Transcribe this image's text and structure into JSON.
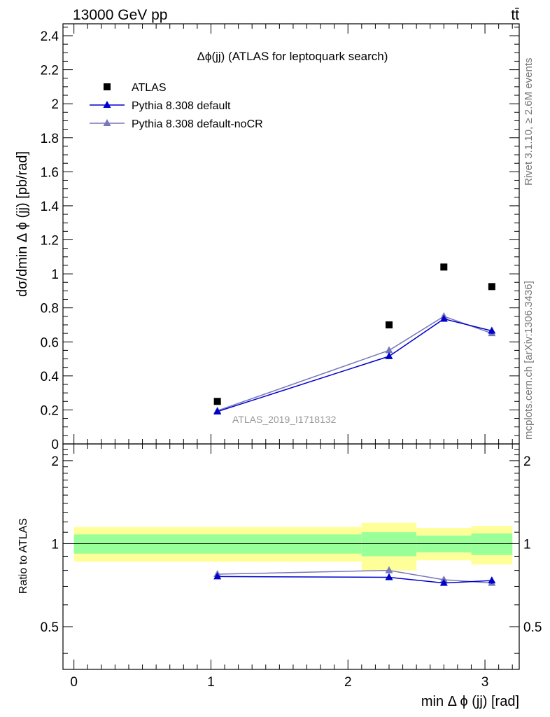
{
  "header": {
    "left": "13000 GeV pp",
    "right": "tt̄"
  },
  "side_labels": {
    "rivet": "Rivet 3.1.10, ≥ 2.6M events",
    "mcplots": "mcplots.cern.ch [arXiv:1306.3436]"
  },
  "chart_data": [
    {
      "type": "scatter",
      "title": "Δϕ(jj) (ATLAS for leptoquark search)",
      "ylabel": "dσ/dmin Δ ϕ (jj) [pb/rad]",
      "xlim": [
        -0.08,
        3.25
      ],
      "ylim": [
        0,
        2.47
      ],
      "yticks": [
        0,
        0.2,
        0.4,
        0.6,
        0.8,
        1,
        1.2,
        1.4,
        1.6,
        1.8,
        2,
        2.2,
        2.4
      ],
      "ytick_labels": [
        "0",
        "0.2",
        "0.4",
        "0.6",
        "0.8",
        "1",
        "1.2",
        "1.4",
        "1.6",
        "1.8",
        "2",
        "2.2",
        "2.4"
      ],
      "watermark": "ATLAS_2019_I1718132",
      "legend_position": "top-left",
      "series": [
        {
          "name": "ATLAS",
          "marker": "square",
          "color": "#000000",
          "x": [
            1.047,
            2.3,
            2.7,
            3.05
          ],
          "y": [
            0.25,
            0.7,
            1.04,
            0.925
          ]
        },
        {
          "name": "Pythia 8.308 default",
          "marker": "triangle",
          "color": "#0000cc",
          "x": [
            1.047,
            2.3,
            2.7,
            3.05
          ],
          "y": [
            0.19,
            0.515,
            0.735,
            0.665
          ],
          "yerr": [
            0.004,
            0.01,
            0.012,
            0.018
          ]
        },
        {
          "name": "Pythia 8.308 default-noCR",
          "marker": "triangle",
          "color": "#7777bb",
          "x": [
            1.047,
            2.3,
            2.7,
            3.05
          ],
          "y": [
            0.195,
            0.55,
            0.75,
            0.65
          ],
          "yerr": [
            0.004,
            0.01,
            0.012,
            0.012
          ]
        }
      ]
    },
    {
      "type": "scatter",
      "ylabel": "Ratio to ATLAS",
      "xlabel": "min Δ ϕ (jj) [rad]",
      "xlim": [
        -0.08,
        3.25
      ],
      "ylim": [
        0.35,
        2.3
      ],
      "yticks": [
        0.5,
        1,
        2
      ],
      "ytick_labels": [
        "0.5",
        "1",
        "2"
      ],
      "xticks": [
        0,
        1,
        2,
        3
      ],
      "xtick_labels": [
        "0",
        "1",
        "2",
        "3"
      ],
      "bands": [
        {
          "x0": 0.0,
          "x1": 2.1,
          "stat_lo": 0.92,
          "stat_hi": 1.08,
          "tot_lo": 0.86,
          "tot_hi": 1.15,
          "stat_color": "#99ff99",
          "tot_color": "#ffff99"
        },
        {
          "x0": 2.1,
          "x1": 2.5,
          "stat_lo": 0.9,
          "stat_hi": 1.1,
          "tot_lo": 0.8,
          "tot_hi": 1.19,
          "stat_color": "#99ff99",
          "tot_color": "#ffff99"
        },
        {
          "x0": 2.5,
          "x1": 2.9,
          "stat_lo": 0.93,
          "stat_hi": 1.07,
          "tot_lo": 0.87,
          "tot_hi": 1.14,
          "stat_color": "#99ff99",
          "tot_color": "#ffff99"
        },
        {
          "x0": 2.9,
          "x1": 3.2,
          "stat_lo": 0.91,
          "stat_hi": 1.09,
          "tot_lo": 0.84,
          "tot_hi": 1.16,
          "stat_color": "#99ff99",
          "tot_color": "#ffff99"
        }
      ],
      "series": [
        {
          "name": "Pythia 8.308 default",
          "marker": "triangle",
          "color": "#0000cc",
          "x": [
            1.047,
            2.3,
            2.7,
            3.05
          ],
          "y": [
            0.76,
            0.755,
            0.72,
            0.735
          ],
          "yerr": [
            0.005,
            0.015,
            0.012,
            0.02
          ]
        },
        {
          "name": "Pythia 8.308 default-noCR",
          "marker": "triangle",
          "color": "#7777bb",
          "x": [
            1.047,
            2.3,
            2.7,
            3.05
          ],
          "y": [
            0.775,
            0.8,
            0.74,
            0.72
          ],
          "yerr": [
            0.005,
            0.015,
            0.01,
            0.012
          ]
        }
      ]
    }
  ]
}
